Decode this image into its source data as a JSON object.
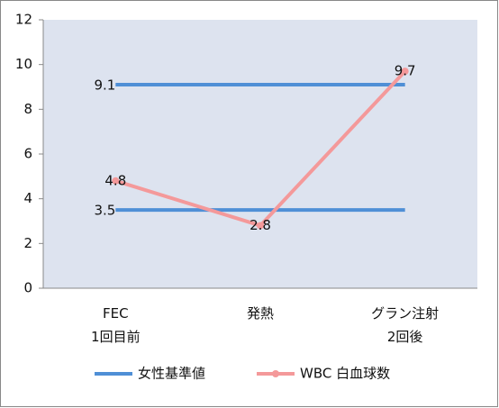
{
  "chart_data": {
    "type": "line",
    "categories": [
      "FEC\n1回目前",
      "発熱",
      "グラン注射\n2回後"
    ],
    "series": [
      {
        "name": "女性基準値",
        "color": "#4f8fd6",
        "values": [
          9.1,
          9.1,
          9.1
        ],
        "data_labels": "first"
      },
      {
        "color": "#4f8fd6",
        "values": [
          3.5,
          3.5,
          3.5
        ],
        "data_labels": "first"
      },
      {
        "name": "WBC 白血球数",
        "color": "#f4999a",
        "values": [
          4.8,
          2.8,
          9.7
        ],
        "data_labels": "all",
        "markers": true
      }
    ],
    "ylim": [
      0,
      12
    ],
    "yticks": [
      0,
      2,
      4,
      6,
      8,
      10,
      12
    ],
    "legend": "bottom",
    "plot_background": "#dde3ef"
  }
}
